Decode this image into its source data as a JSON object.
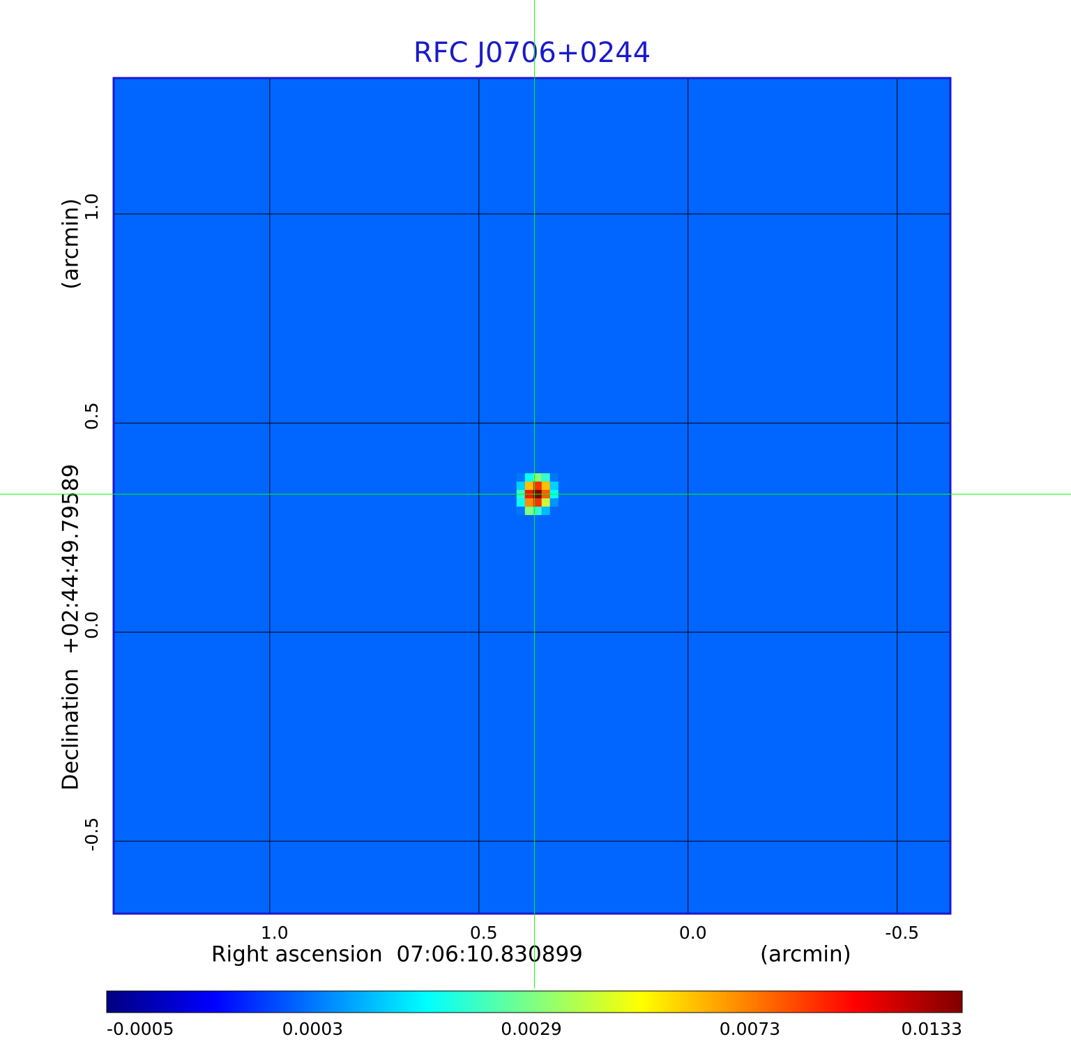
{
  "chart_data": {
    "type": "heatmap",
    "title": "RFC J0706+0244",
    "x_label": "Right ascension  07:06:10.830899",
    "x_unit": "(arcmin)",
    "y_label": "Declination  +02:44:49.79589",
    "y_unit": "(arcmin)",
    "xlim": [
      1.373,
      -0.627
    ],
    "ylim": [
      -0.673,
      1.325
    ],
    "xticks": [
      {
        "value": 1,
        "label": "1.0"
      },
      0.5,
      {
        "value": 0,
        "label": "0.0"
      },
      -0.5
    ],
    "yticks": [
      {
        "value": 1,
        "label": "1.0"
      },
      0.5,
      {
        "value": 0,
        "label": "0.0"
      },
      -0.5
    ],
    "grid": true,
    "colormap": "jet",
    "color_scale": "sqrt",
    "clim": [
      -0.0005,
      0.0133
    ],
    "colorbar_ticks": [
      -0.0005,
      0.0003,
      0.0029,
      0.0073,
      0.0133
    ],
    "image": {
      "background": 0.0002,
      "x": [
        0.4,
        0.38,
        0.36,
        0.34,
        0.32
      ],
      "y": [
        0.37,
        0.35,
        0.33,
        0.31,
        0.29
      ],
      "z": [
        [
          0.0003,
          0.0015,
          0.003,
          0.002,
          0.0003
        ],
        [
          0.001,
          0.006,
          0.009,
          0.006,
          0.001
        ],
        [
          0.002,
          0.0095,
          0.0133,
          0.008,
          0.0015
        ],
        [
          0.0015,
          0.007,
          0.009,
          0.004,
          0.0005
        ],
        [
          0.0003,
          0.003,
          0.002,
          0.0008,
          0.0002
        ]
      ]
    },
    "crosshair": {
      "x": 0.367,
      "y": 0.33,
      "color": "#00ff00"
    },
    "frame_color": "#1a1acc",
    "grid_color": "#000000"
  }
}
